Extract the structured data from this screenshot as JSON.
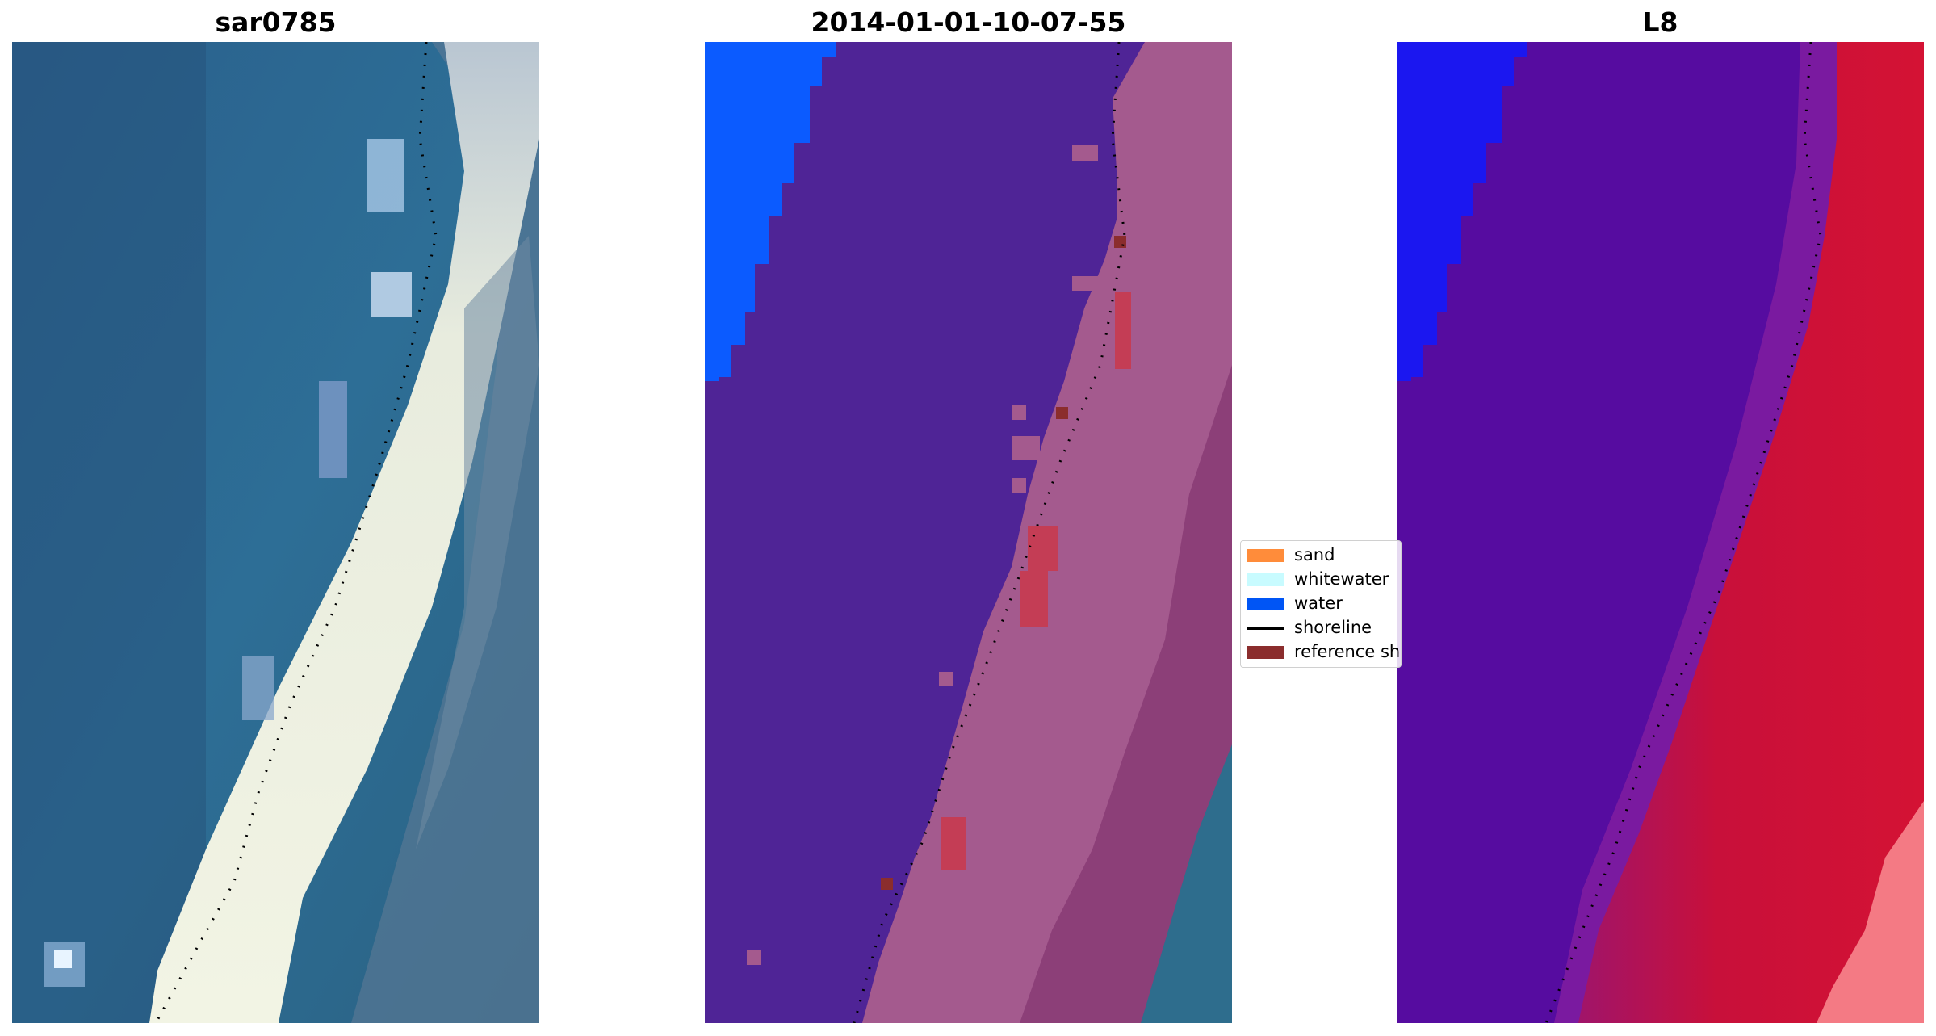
{
  "panels": [
    {
      "title": "sar0785"
    },
    {
      "title": "2014-01-01-10-07-55"
    },
    {
      "title": "L8"
    }
  ],
  "legend": {
    "items": [
      {
        "label": "sand",
        "color": "#ff8c3a",
        "kind": "patch"
      },
      {
        "label": "whitewater",
        "color": "#c8fbff",
        "kind": "patch"
      },
      {
        "label": "water",
        "color": "#0055f5",
        "kind": "patch"
      },
      {
        "label": "shoreline",
        "color": "#000000",
        "kind": "line"
      },
      {
        "label": "reference shoreline",
        "color": "#8b2d2d",
        "kind": "patch"
      }
    ]
  },
  "colors": {
    "ocean": "#275e88",
    "beach_sand_true_color": "#e9eadc",
    "classified_water_region": "#4f2496",
    "classified_water_deep": "#0b5bff",
    "classified_land": "#a45a8e",
    "ndwi_water": "#560ca0",
    "ndwi_land": "#c8103a",
    "ndwi_deep": "#1b17f0"
  }
}
